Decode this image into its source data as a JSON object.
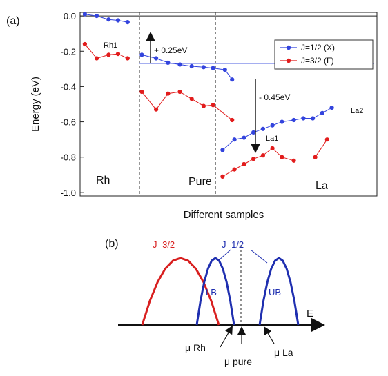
{
  "panel_a": {
    "label": "(a)",
    "ylabel": "Energy (eV)",
    "xlabel": "Different samples",
    "region_labels": [
      "Rh",
      "Pure",
      "La"
    ],
    "point_labels": [
      "Rh1",
      "La1",
      "La2"
    ],
    "annotations": [
      "+ 0.25eV",
      "- 0.45eV"
    ]
  },
  "panel_b": {
    "label": "(b)",
    "labels": {
      "j32": "J=3/2",
      "j12": "J=1/2",
      "lb": "LB",
      "ub": "UB",
      "e": "E",
      "mu_rh": "μ Rh",
      "mu_pure": "μ pure",
      "mu_la": "μ La"
    }
  },
  "colors": {
    "blue": "#3344dd",
    "red": "#e21c1c",
    "line_blue": "#6f7ee6",
    "j32_red": "#d81f1f",
    "j12_blue": "#1f2fb0"
  },
  "chart_data": [
    {
      "type": "line",
      "ylim": [
        -1.02,
        0.02
      ],
      "yticks": [
        "0.0",
        "-0.2",
        "-0.4",
        "-0.6",
        "-0.8",
        "-1.0"
      ],
      "ytick_values": [
        0.0,
        -0.2,
        -0.4,
        -0.6,
        -0.8,
        -1.0
      ],
      "xlim": [
        0,
        100
      ],
      "sample_boundaries": [
        25,
        57
      ],
      "reference_lines": [
        0.0,
        -0.27
      ],
      "grid": false,
      "legend": "top-right",
      "series": [
        {
          "name": "J=1/2 (X)",
          "color": "blue",
          "segments": [
            [
              [
                2,
                0.01
              ],
              [
                7,
                0.0
              ],
              [
                12,
                -0.02
              ],
              [
                16,
                -0.025
              ],
              [
                20,
                -0.035
              ]
            ],
            [
              [
                26,
                -0.22
              ],
              [
                32,
                -0.24
              ],
              [
                37,
                -0.265
              ],
              [
                42,
                -0.275
              ],
              [
                47,
                -0.285
              ],
              [
                52,
                -0.29
              ],
              [
                56,
                -0.295
              ],
              [
                61,
                -0.305
              ],
              [
                64,
                -0.36
              ]
            ],
            [
              [
                60,
                -0.76
              ],
              [
                65,
                -0.7
              ],
              [
                69,
                -0.69
              ],
              [
                73,
                -0.66
              ],
              [
                77,
                -0.64
              ],
              [
                81,
                -0.62
              ],
              [
                85,
                -0.6
              ],
              [
                90,
                -0.59
              ],
              [
                94,
                -0.58
              ],
              [
                98,
                -0.58
              ],
              [
                102,
                -0.55
              ],
              [
                106,
                -0.52
              ]
            ]
          ]
        },
        {
          "name": "J=3/2 (Γ)",
          "color": "red",
          "segments": [
            [
              [
                2,
                -0.16
              ],
              [
                7,
                -0.24
              ],
              [
                12,
                -0.22
              ],
              [
                16,
                -0.215
              ],
              [
                20,
                -0.24
              ]
            ],
            [
              [
                26,
                -0.43
              ],
              [
                32,
                -0.53
              ],
              [
                37,
                -0.44
              ],
              [
                42,
                -0.43
              ],
              [
                47,
                -0.47
              ],
              [
                52,
                -0.51
              ],
              [
                56,
                -0.505
              ],
              [
                64,
                -0.59
              ]
            ],
            [
              [
                60,
                -0.91
              ],
              [
                65,
                -0.87
              ],
              [
                69,
                -0.84
              ],
              [
                73,
                -0.81
              ],
              [
                77,
                -0.79
              ],
              [
                81,
                -0.75
              ],
              [
                85,
                -0.8
              ],
              [
                90,
                -0.82
              ]
            ],
            [
              [
                99,
                -0.8
              ],
              [
                104,
                -0.7
              ]
            ]
          ]
        }
      ]
    },
    {
      "type": "line",
      "xlabel": "E",
      "series": [
        {
          "name": "J=3/2",
          "color": "j32_red",
          "x": [
            0.0,
            0.1,
            0.2,
            0.3,
            0.4,
            0.5,
            0.6,
            0.7,
            0.8,
            0.9,
            1.0
          ],
          "y": [
            0.0,
            0.36,
            0.64,
            0.84,
            0.96,
            1.0,
            0.96,
            0.84,
            0.64,
            0.36,
            0.0
          ]
        },
        {
          "name": "LB",
          "color": "j12_blue",
          "x": [
            0.0,
            0.1,
            0.2,
            0.3,
            0.4,
            0.5,
            0.6,
            0.7,
            0.8,
            0.9,
            1.0
          ],
          "y": [
            0.0,
            0.36,
            0.64,
            0.84,
            0.96,
            1.0,
            0.96,
            0.84,
            0.64,
            0.36,
            0.0
          ]
        },
        {
          "name": "UB",
          "color": "j12_blue",
          "x": [
            0.0,
            0.1,
            0.2,
            0.3,
            0.4,
            0.5,
            0.6,
            0.7,
            0.8,
            0.9,
            1.0
          ],
          "y": [
            0.0,
            0.36,
            0.64,
            0.84,
            0.96,
            1.0,
            0.96,
            0.84,
            0.64,
            0.36,
            0.0
          ]
        }
      ]
    }
  ]
}
